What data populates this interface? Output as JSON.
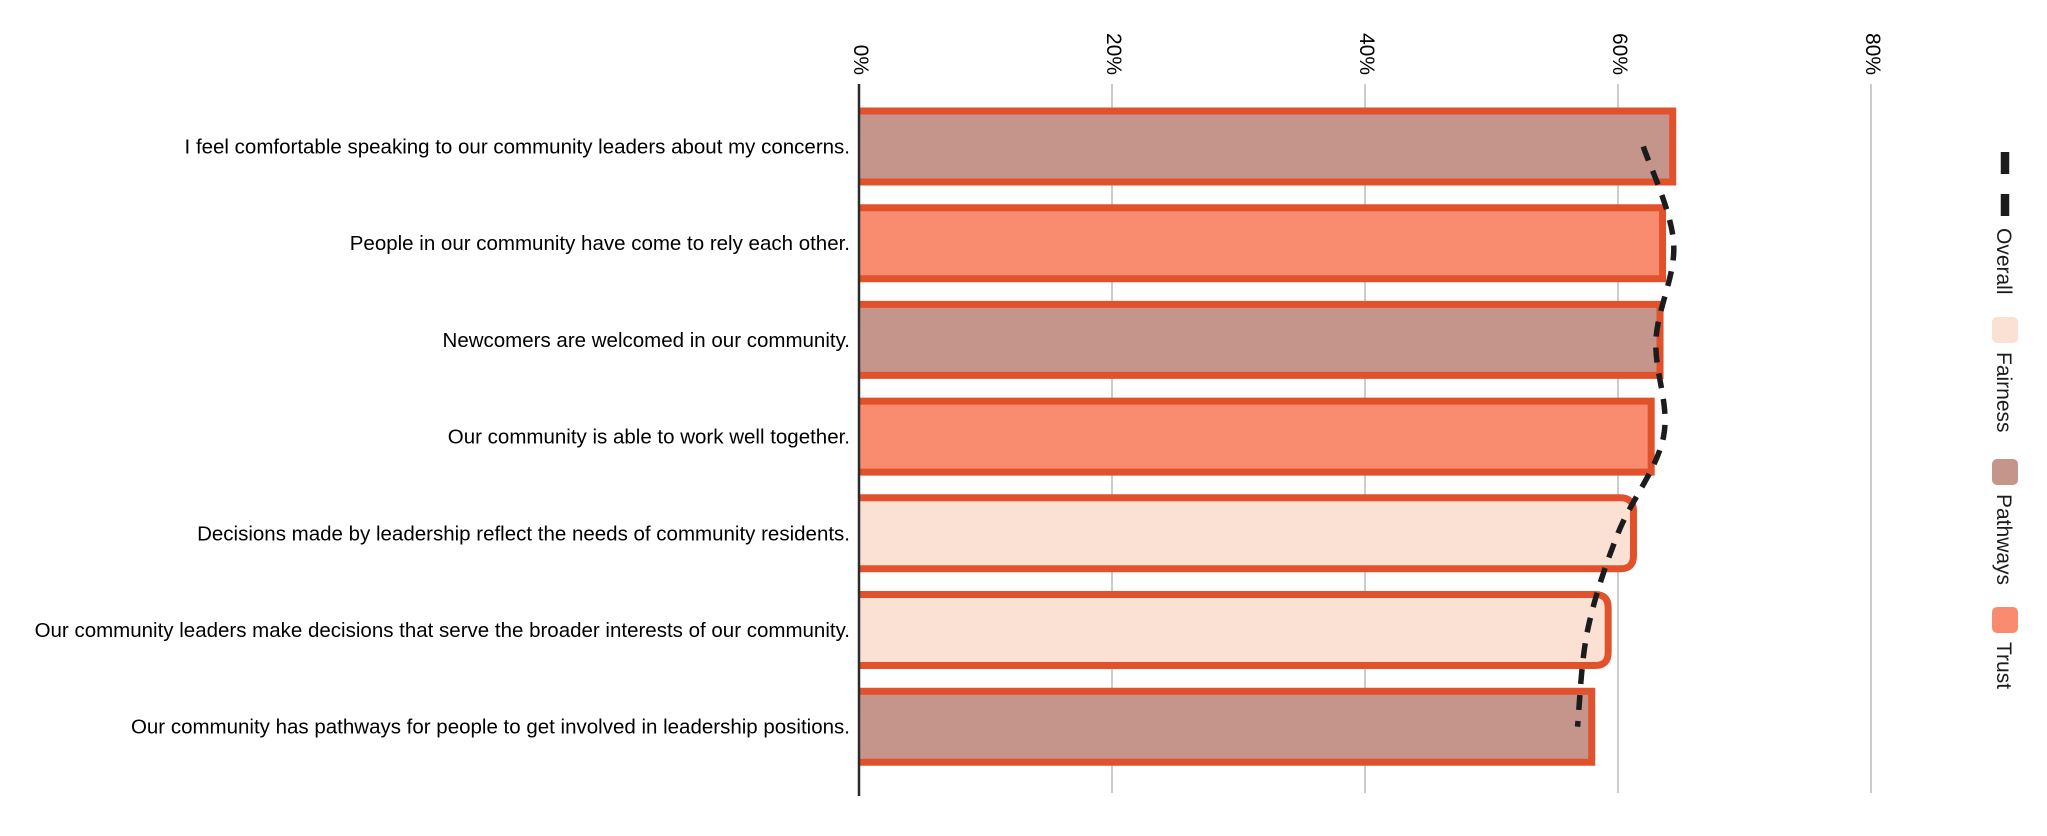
{
  "chart_data": {
    "type": "bar",
    "orientation": "horizontal",
    "unit": "%",
    "title": "",
    "x_axis": {
      "position": "top",
      "tick_labels": [
        "0%",
        "20%",
        "40%",
        "60%",
        "80%"
      ],
      "tick_values": [
        0,
        20,
        40,
        60,
        80
      ],
      "max": 80,
      "grid": true,
      "label_rotation_deg": 90
    },
    "categories": [
      "I feel comfortable speaking to our community leaders about my concerns.",
      "People in our community have come to rely each other.",
      "Newcomers are welcomed in our community.",
      "Our community is able to work well together.",
      "Decisions made by leadership reflect the needs of community residents.",
      "Our community leaders make decisions that serve the broader interests of our community.",
      "Our community has pathways for people to get involved in leadership positions."
    ],
    "bars": [
      {
        "group": "Pathways",
        "value": 64.6
      },
      {
        "group": "Trust",
        "value": 63.8
      },
      {
        "group": "Pathways",
        "value": 63.6
      },
      {
        "group": "Trust",
        "value": 62.9
      },
      {
        "group": "Fairness",
        "value": 61.5
      },
      {
        "group": "Fairness",
        "value": 59.5
      },
      {
        "group": "Pathways",
        "value": 58.2
      }
    ],
    "overall_line": {
      "name": "Overall",
      "style": "dashed",
      "values": [
        62.0,
        64.4,
        63.0,
        63.6,
        60.0,
        57.6,
        56.8
      ]
    },
    "legend": {
      "position": "right",
      "label_rotation_deg": 90,
      "items": [
        {
          "label": "Overall",
          "symbol": "dashed-line",
          "color": "#1c1c1c"
        },
        {
          "label": "Fairness",
          "symbol": "square",
          "color": "#fbe0d4"
        },
        {
          "label": "Pathways",
          "symbol": "square",
          "color": "#c5948a"
        },
        {
          "label": "Trust",
          "symbol": "square",
          "color": "#f98b6e"
        }
      ]
    },
    "colors": {
      "bar_stroke": "#e1522c",
      "Fairness": "#fbe0d4",
      "Pathways": "#c5948a",
      "Trust": "#f98b6e",
      "overall_line": "#1c1c1c",
      "gridline": "#cccccc",
      "axis_line": "#2b2b2b",
      "text": "#000000"
    }
  }
}
